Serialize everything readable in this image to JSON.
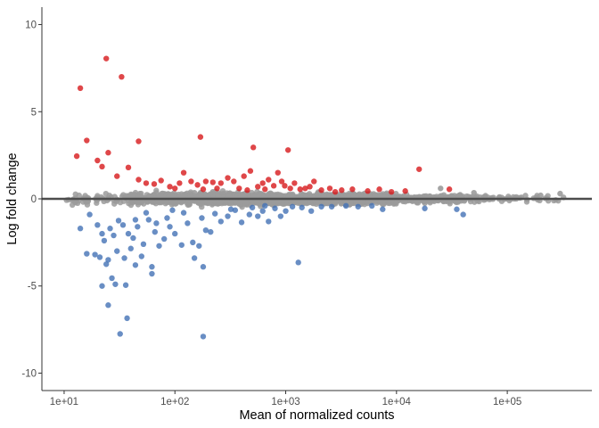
{
  "chart_data": {
    "type": "scatter",
    "title": "",
    "xlabel": "Mean of normalized counts",
    "ylabel": "Log fold change",
    "x_scale": "log10",
    "xlim": [
      6.3,
      580000
    ],
    "ylim": [
      -11,
      11
    ],
    "x_ticks": [
      10,
      100,
      1000,
      10000,
      100000
    ],
    "x_tick_labels": [
      "1e+01",
      "1e+02",
      "1e+03",
      "1e+04",
      "1e+05"
    ],
    "y_ticks": [
      -10,
      -5,
      0,
      5,
      10
    ],
    "y_tick_labels": [
      "-10",
      "-5",
      "0",
      "5",
      "10"
    ],
    "grid": false,
    "legend": "none",
    "reference_line": {
      "y": 0,
      "color": "#4d4d4d"
    },
    "series": [
      {
        "role": "up",
        "color": "#d7191c",
        "points": [
          [
            24,
            8.05
          ],
          [
            33,
            7.0
          ],
          [
            14,
            6.35
          ],
          [
            16,
            3.35
          ],
          [
            47,
            3.3
          ],
          [
            170,
            3.55
          ],
          [
            510,
            2.95
          ],
          [
            1050,
            2.8
          ],
          [
            13,
            2.45
          ],
          [
            25,
            2.65
          ],
          [
            20,
            2.2
          ],
          [
            22,
            1.85
          ],
          [
            30,
            1.3
          ],
          [
            38,
            1.8
          ],
          [
            16000,
            1.7
          ],
          [
            47,
            1.1
          ],
          [
            55,
            0.9
          ],
          [
            65,
            0.85
          ],
          [
            75,
            1.05
          ],
          [
            90,
            0.7
          ],
          [
            120,
            1.5
          ],
          [
            140,
            1.0
          ],
          [
            160,
            0.8
          ],
          [
            190,
            1.0
          ],
          [
            220,
            0.95
          ],
          [
            260,
            0.9
          ],
          [
            300,
            1.2
          ],
          [
            340,
            1.0
          ],
          [
            420,
            1.3
          ],
          [
            480,
            1.6
          ],
          [
            560,
            0.7
          ],
          [
            620,
            0.9
          ],
          [
            700,
            1.1
          ],
          [
            780,
            0.75
          ],
          [
            850,
            1.5
          ],
          [
            920,
            1.0
          ],
          [
            980,
            0.75
          ],
          [
            1200,
            0.9
          ],
          [
            1350,
            0.55
          ],
          [
            1500,
            0.6
          ],
          [
            1800,
            1.0
          ],
          [
            2100,
            0.5
          ],
          [
            2500,
            0.6
          ],
          [
            3200,
            0.5
          ],
          [
            4000,
            0.55
          ],
          [
            5500,
            0.45
          ],
          [
            7000,
            0.55
          ],
          [
            9000,
            0.4
          ],
          [
            12000,
            0.45
          ],
          [
            30000,
            0.55
          ],
          [
            100,
            0.6
          ],
          [
            110,
            0.9
          ],
          [
            180,
            0.55
          ],
          [
            240,
            0.6
          ],
          [
            380,
            0.6
          ],
          [
            450,
            0.5
          ],
          [
            650,
            0.55
          ],
          [
            1100,
            0.6
          ],
          [
            1650,
            0.7
          ],
          [
            2800,
            0.4
          ]
        ]
      },
      {
        "role": "down",
        "color": "#4472b5",
        "points": [
          [
            180,
            -7.9
          ],
          [
            32,
            -7.75
          ],
          [
            37,
            -6.85
          ],
          [
            25,
            -6.1
          ],
          [
            22,
            -5.0
          ],
          [
            29,
            -4.9
          ],
          [
            36,
            -4.95
          ],
          [
            27,
            -4.55
          ],
          [
            24,
            -3.75
          ],
          [
            21,
            -3.35
          ],
          [
            16,
            -3.15
          ],
          [
            19,
            -3.2
          ],
          [
            25,
            -3.5
          ],
          [
            30,
            -3.0
          ],
          [
            35,
            -3.4
          ],
          [
            40,
            -2.85
          ],
          [
            50,
            -3.3
          ],
          [
            62,
            -3.9
          ],
          [
            62,
            -4.3
          ],
          [
            44,
            -3.8
          ],
          [
            150,
            -3.4
          ],
          [
            180,
            -3.9
          ],
          [
            1300,
            -3.65
          ],
          [
            14,
            -1.7
          ],
          [
            17,
            -0.9
          ],
          [
            20,
            -1.5
          ],
          [
            22,
            -2.0
          ],
          [
            23,
            -2.4
          ],
          [
            26,
            -1.7
          ],
          [
            28,
            -2.1
          ],
          [
            31,
            -1.25
          ],
          [
            34,
            -1.5
          ],
          [
            38,
            -2.0
          ],
          [
            42,
            -2.25
          ],
          [
            46,
            -1.6
          ],
          [
            52,
            -2.6
          ],
          [
            58,
            -1.2
          ],
          [
            66,
            -1.9
          ],
          [
            72,
            -2.7
          ],
          [
            80,
            -2.3
          ],
          [
            90,
            -1.6
          ],
          [
            100,
            -2.0
          ],
          [
            115,
            -2.65
          ],
          [
            130,
            -1.4
          ],
          [
            145,
            -2.5
          ],
          [
            165,
            -2.7
          ],
          [
            190,
            -1.8
          ],
          [
            210,
            -1.9
          ],
          [
            230,
            -0.85
          ],
          [
            260,
            -1.3
          ],
          [
            300,
            -1.0
          ],
          [
            350,
            -0.65
          ],
          [
            400,
            -1.35
          ],
          [
            470,
            -0.9
          ],
          [
            560,
            -1.0
          ],
          [
            620,
            -0.7
          ],
          [
            700,
            -1.3
          ],
          [
            800,
            -0.55
          ],
          [
            900,
            -1.0
          ],
          [
            1000,
            -0.7
          ],
          [
            1150,
            -0.45
          ],
          [
            1400,
            -0.5
          ],
          [
            1700,
            -0.7
          ],
          [
            2100,
            -0.45
          ],
          [
            2600,
            -0.45
          ],
          [
            3500,
            -0.4
          ],
          [
            4500,
            -0.45
          ],
          [
            6000,
            -0.4
          ],
          [
            7500,
            -0.6
          ],
          [
            18000,
            -0.55
          ],
          [
            55,
            -0.8
          ],
          [
            85,
            -1.1
          ],
          [
            120,
            -0.8
          ],
          [
            175,
            -1.1
          ],
          [
            320,
            -0.6
          ],
          [
            500,
            -0.5
          ],
          [
            650,
            -0.4
          ],
          [
            35000,
            -0.6
          ],
          [
            40000,
            -0.9
          ],
          [
            44,
            -1.2
          ],
          [
            68,
            -1.4
          ],
          [
            95,
            -0.65
          ]
        ]
      },
      {
        "role": "not-significant",
        "color": "#9b9b9b",
        "x_range": [
          10,
          350000
        ],
        "y_band": [
          -0.55,
          0.55
        ],
        "points": [
          [
            300000,
            0.3
          ],
          [
            25000,
            0.6
          ],
          [
            50000,
            0.35
          ],
          [
            200000,
            0.2
          ],
          [
            220,
            0.4
          ],
          [
            150,
            0.35
          ]
        ]
      }
    ]
  }
}
